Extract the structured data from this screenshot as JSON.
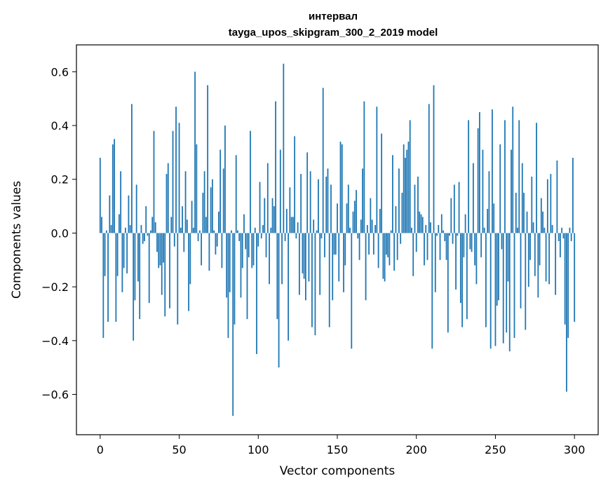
{
  "chart_data": {
    "type": "bar",
    "title_line1": "интервал",
    "title_line2": "tayga_upos_skipgram_300_2_2019 model",
    "xlabel": "Vector components",
    "ylabel": "Components values",
    "xlim": [
      -15,
      315
    ],
    "ylim": [
      -0.75,
      0.7
    ],
    "xticks": [
      0,
      50,
      100,
      150,
      200,
      250,
      300
    ],
    "xtick_labels": [
      "0",
      "50",
      "100",
      "150",
      "200",
      "250",
      "300"
    ],
    "yticks": [
      -0.6,
      -0.4,
      -0.2,
      0.0,
      0.2,
      0.4,
      0.6
    ],
    "ytick_labels": [
      "−0.6",
      "−0.4",
      "−0.2",
      "0.0",
      "0.2",
      "0.4",
      "0.6"
    ],
    "bar_color": "#1f77b4",
    "grid": false,
    "values": [
      0.28,
      0.06,
      -0.39,
      -0.16,
      0.01,
      -0.33,
      0.14,
      0.03,
      0.33,
      0.35,
      -0.33,
      -0.16,
      0.07,
      0.23,
      -0.22,
      -0.13,
      0.02,
      -0.15,
      0.14,
      0.03,
      0.48,
      -0.4,
      -0.25,
      0.18,
      -0.18,
      -0.32,
      0.03,
      -0.04,
      -0.03,
      0.1,
      -0.01,
      -0.26,
      0.01,
      0.06,
      0.38,
      0.04,
      -0.07,
      -0.13,
      -0.12,
      -0.23,
      -0.11,
      -0.31,
      0.22,
      0.26,
      -0.28,
      0.06,
      0.38,
      -0.05,
      0.47,
      -0.34,
      0.41,
      0.02,
      0.1,
      -0.07,
      0.23,
      0.05,
      -0.29,
      -0.19,
      0.12,
      0.02,
      0.6,
      0.33,
      -0.03,
      0.01,
      -0.12,
      0.15,
      0.23,
      0.06,
      0.55,
      -0.14,
      0.17,
      0.2,
      0.01,
      -0.08,
      -0.05,
      0.08,
      0.31,
      -0.13,
      0.24,
      0.4,
      -0.24,
      -0.39,
      -0.22,
      0.01,
      -0.68,
      -0.34,
      0.29,
      0.01,
      -0.03,
      -0.24,
      -0.13,
      0.07,
      -0.06,
      -0.32,
      -0.09,
      0.38,
      -0.13,
      -0.12,
      0.02,
      -0.45,
      -0.05,
      0.19,
      -0.02,
      0.03,
      0.13,
      -0.09,
      0.26,
      -0.19,
      0.02,
      0.13,
      0.1,
      0.49,
      -0.32,
      -0.5,
      0.31,
      -0.19,
      0.63,
      -0.03,
      0.09,
      -0.4,
      0.17,
      0.06,
      0.06,
      0.36,
      -0.02,
      0.04,
      -0.23,
      0.22,
      -0.15,
      -0.17,
      -0.25,
      0.3,
      -0.18,
      0.23,
      -0.35,
      0.05,
      -0.38,
      0.01,
      0.2,
      -0.23,
      -0.02,
      0.54,
      -0.09,
      0.21,
      0.24,
      -0.35,
      0.18,
      -0.25,
      -0.08,
      -0.08,
      0.11,
      -0.18,
      0.34,
      0.33,
      -0.22,
      -0.12,
      0.11,
      0.18,
      0.02,
      -0.43,
      0.08,
      0.12,
      0.16,
      -0.02,
      -0.1,
      0.05,
      0.24,
      0.49,
      -0.25,
      0.03,
      -0.08,
      0.13,
      0.05,
      -0.08,
      0.03,
      0.47,
      -0.13,
      0.09,
      0.37,
      -0.17,
      -0.18,
      -0.08,
      -0.09,
      -0.12,
      0.01,
      0.29,
      -0.14,
      0.1,
      -0.1,
      0.24,
      -0.04,
      0.15,
      0.33,
      0.28,
      0.31,
      0.34,
      0.42,
      0.02,
      -0.16,
      0.18,
      -0.07,
      0.21,
      0.08,
      0.07,
      0.06,
      -0.12,
      0.03,
      -0.1,
      0.48,
      0.04,
      -0.43,
      0.55,
      -0.22,
      -0.01,
      0.03,
      -0.1,
      0.07,
      0.01,
      -0.03,
      -0.1,
      -0.37,
      -0.01,
      0.13,
      -0.04,
      0.18,
      -0.21,
      -0.01,
      0.19,
      -0.26,
      -0.35,
      -0.09,
      0.07,
      -0.32,
      0.42,
      -0.06,
      -0.07,
      0.26,
      -0.12,
      -0.19,
      0.39,
      0.45,
      -0.09,
      0.31,
      0.02,
      -0.35,
      0.09,
      0.23,
      -0.43,
      0.46,
      0.11,
      -0.42,
      -0.27,
      -0.25,
      0.33,
      -0.06,
      -0.41,
      0.42,
      -0.37,
      -0.18,
      -0.44,
      0.31,
      0.47,
      -0.39,
      0.15,
      0.02,
      0.42,
      -0.28,
      0.26,
      0.15,
      -0.36,
      0.08,
      -0.2,
      -0.1,
      0.21,
      0.04,
      -0.16,
      0.41,
      -0.24,
      -0.12,
      0.13,
      0.08,
      0.02,
      -0.18,
      0.2,
      -0.19,
      0.22,
      0.03,
      0.0,
      -0.23,
      0.27,
      -0.03,
      -0.09,
      0.02,
      -0.02,
      -0.34,
      -0.59,
      -0.39,
      0.02,
      -0.03,
      0.28,
      -0.33
    ]
  }
}
